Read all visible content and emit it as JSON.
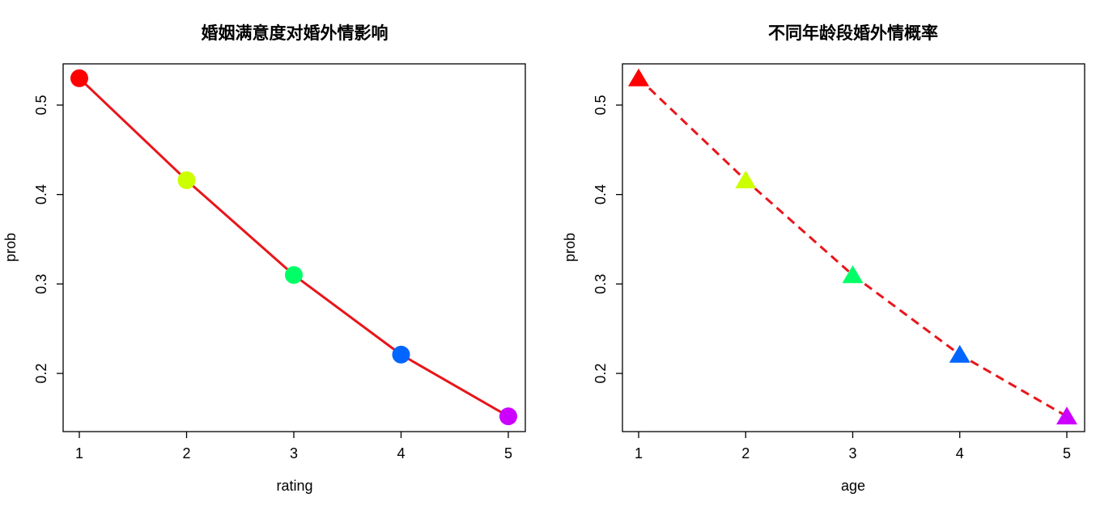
{
  "chart_data": [
    {
      "type": "line",
      "title": "婚姻满意度对婚外情影响",
      "xlabel": "rating",
      "ylabel": "prob",
      "x": [
        1,
        2,
        3,
        4,
        5
      ],
      "y": [
        0.53,
        0.416,
        0.31,
        0.221,
        0.152
      ],
      "xlim": [
        1,
        5
      ],
      "ylim": [
        0.15,
        0.53
      ],
      "xticks": [
        "1",
        "2",
        "3",
        "4",
        "5"
      ],
      "yticks": [
        "0.2",
        "0.3",
        "0.4",
        "0.5"
      ],
      "line": {
        "color": "#e8161b",
        "style": "solid"
      },
      "marker": "circle",
      "point_colors": [
        "#ff0000",
        "#ccff00",
        "#00ff66",
        "#0066ff",
        "#cc00ff"
      ],
      "grid": false
    },
    {
      "type": "line",
      "title": "不同年龄段婚外情概率",
      "xlabel": "age",
      "ylabel": "prob",
      "x": [
        1,
        2,
        3,
        4,
        5
      ],
      "y": [
        0.53,
        0.416,
        0.31,
        0.221,
        0.152
      ],
      "xlim": [
        1,
        5
      ],
      "ylim": [
        0.15,
        0.53
      ],
      "xticks": [
        "1",
        "2",
        "3",
        "4",
        "5"
      ],
      "yticks": [
        "0.2",
        "0.3",
        "0.4",
        "0.5"
      ],
      "line": {
        "color": "#e8161b",
        "style": "dashed"
      },
      "marker": "triangle",
      "point_colors": [
        "#ff0000",
        "#ccff00",
        "#00ff66",
        "#0066ff",
        "#cc00ff"
      ],
      "grid": false
    }
  ]
}
